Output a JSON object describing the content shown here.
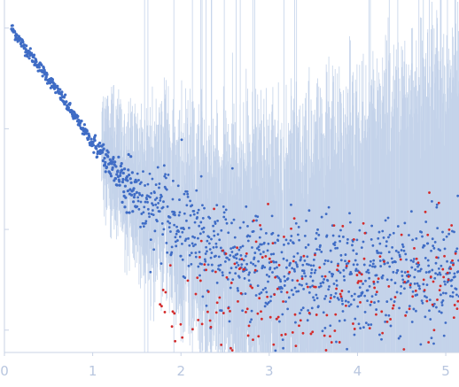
{
  "chart_data": {
    "type": "scatter",
    "title": "",
    "xlabel": "",
    "ylabel": "",
    "log_y": true,
    "xlim": [
      0,
      5.15
    ],
    "x_ticks": [
      0,
      1,
      2,
      3,
      4,
      5
    ],
    "x_tick_labels": [
      "0",
      "1",
      "2",
      "3",
      "4",
      "5"
    ],
    "y_tick_labels": [],
    "error_bar_color": "#c4d3ea",
    "series": [
      {
        "color": "#3f6cc5",
        "points": [
          {
            "x": 0.08,
            "y": 1.0
          },
          {
            "x": 0.2,
            "y": 0.7
          },
          {
            "x": 0.4,
            "y": 0.41
          },
          {
            "x": 0.6,
            "y": 0.24
          },
          {
            "x": 0.8,
            "y": 0.13
          },
          {
            "x": 1.0,
            "y": 0.072
          },
          {
            "x": 1.2,
            "y": 0.045
          },
          {
            "x": 1.4,
            "y": 0.028
          },
          {
            "x": 1.6,
            "y": 0.018
          },
          {
            "x": 1.8,
            "y": 0.013
          },
          {
            "x": 2.0,
            "y": 0.0095
          },
          {
            "x": 2.2,
            "y": 0.0075
          },
          {
            "x": 2.4,
            "y": 0.0062
          },
          {
            "x": 2.6,
            "y": 0.0052
          },
          {
            "x": 2.8,
            "y": 0.0046
          },
          {
            "x": 3.0,
            "y": 0.0042
          },
          {
            "x": 3.2,
            "y": 0.0039
          },
          {
            "x": 3.4,
            "y": 0.0037
          },
          {
            "x": 3.6,
            "y": 0.0036
          },
          {
            "x": 3.8,
            "y": 0.0035
          },
          {
            "x": 4.0,
            "y": 0.0035
          },
          {
            "x": 4.2,
            "y": 0.0034
          },
          {
            "x": 4.4,
            "y": 0.0034
          },
          {
            "x": 4.6,
            "y": 0.0034
          },
          {
            "x": 4.8,
            "y": 0.0033
          },
          {
            "x": 5.0,
            "y": 0.0033
          },
          {
            "x": 5.15,
            "y": 0.0033
          }
        ]
      },
      {
        "color": "#d42a2a",
        "points": [
          {
            "x": 1.7,
            "y": 0.0012
          },
          {
            "x": 2.5,
            "y": 0.0022
          },
          {
            "x": 3.0,
            "y": 0.0024
          },
          {
            "x": 3.5,
            "y": 0.0025
          },
          {
            "x": 4.0,
            "y": 0.0026
          },
          {
            "x": 4.5,
            "y": 0.0026
          },
          {
            "x": 5.0,
            "y": 0.0026
          },
          {
            "x": 5.15,
            "y": 0.0026
          }
        ]
      }
    ]
  }
}
